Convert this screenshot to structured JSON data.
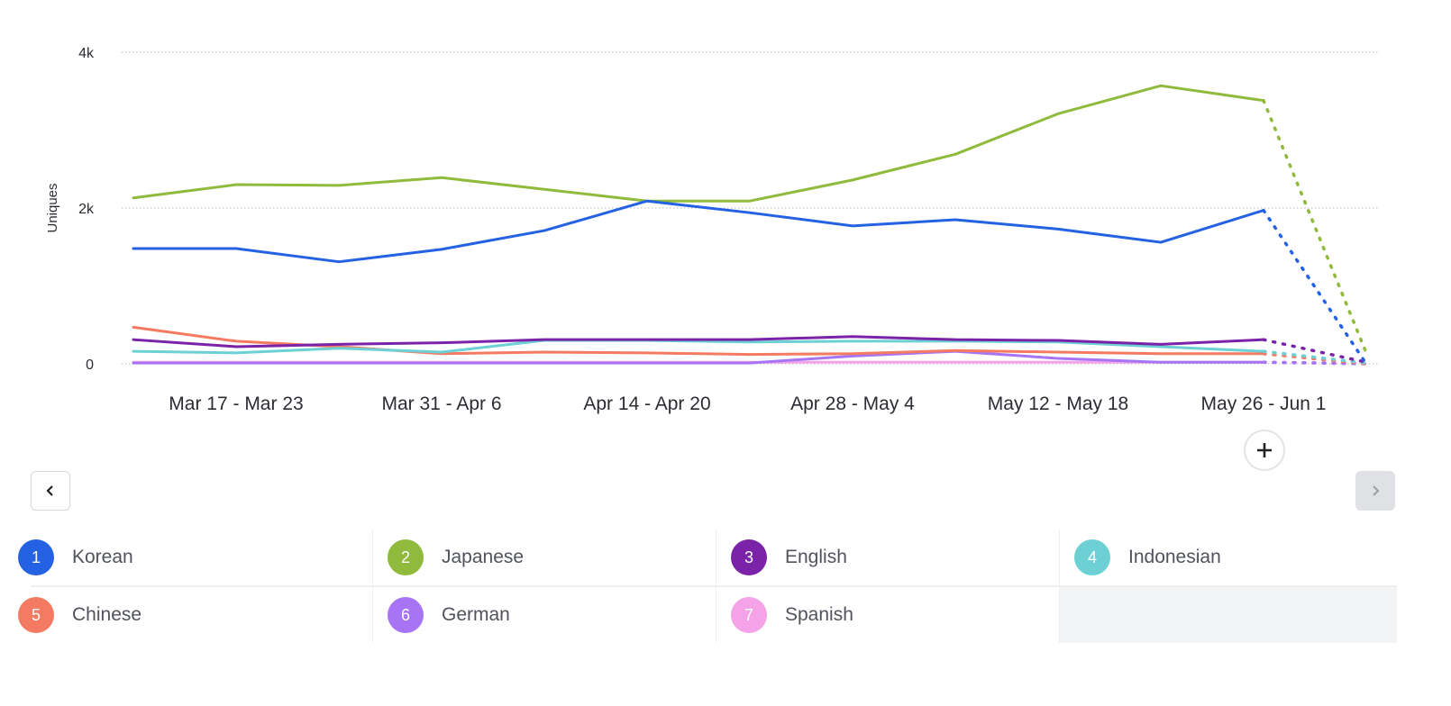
{
  "chart_data": {
    "type": "line",
    "ylabel": "Uniques",
    "xlabel": "",
    "ylim": [
      0,
      4000
    ],
    "y_ticks": [
      "0",
      "2k",
      "4k"
    ],
    "y_tick_values": [
      0,
      2000,
      4000
    ],
    "grid": "horizontal dotted",
    "x_tick_labels": [
      "Mar 17 - Mar 23",
      "Mar 31 - Apr 6",
      "Apr 14 - Apr 20",
      "Apr 28 - May 4",
      "May 12 - May 18",
      "May 26 - Jun 1"
    ],
    "last_point_incomplete": true,
    "series": [
      {
        "name": "Korean",
        "color": "#2462e3",
        "values": [
          1480,
          1480,
          1310,
          1470,
          1710,
          2090,
          1940,
          1770,
          1850,
          1730,
          1560,
          1970,
          0
        ]
      },
      {
        "name": "Japanese",
        "color": "#8fba3c",
        "values": [
          2130,
          2300,
          2290,
          2390,
          2240,
          2090,
          2090,
          2360,
          2690,
          3210,
          3570,
          3380,
          140
        ]
      },
      {
        "name": "English",
        "color": "#7a23a9",
        "values": [
          310,
          220,
          250,
          270,
          310,
          310,
          310,
          350,
          310,
          300,
          250,
          310,
          20
        ]
      },
      {
        "name": "Indonesian",
        "color": "#6dd0d4",
        "values": [
          160,
          140,
          200,
          150,
          300,
          300,
          280,
          290,
          290,
          280,
          220,
          160,
          10
        ]
      },
      {
        "name": "Chinese",
        "color": "#f47a61",
        "values": [
          470,
          290,
          220,
          130,
          150,
          140,
          120,
          130,
          170,
          150,
          130,
          130,
          0
        ]
      },
      {
        "name": "German",
        "color": "#a674f5",
        "values": [
          10,
          10,
          10,
          10,
          10,
          10,
          10,
          100,
          160,
          70,
          20,
          20,
          0
        ]
      },
      {
        "name": "Spanish",
        "color": "#f4a3e8",
        "values": [
          20,
          20,
          20,
          20,
          20,
          20,
          20,
          20,
          20,
          20,
          20,
          20,
          10
        ]
      }
    ]
  },
  "legend": [
    {
      "num": "1",
      "label": "Korean",
      "color": "#2462e3"
    },
    {
      "num": "2",
      "label": "Japanese",
      "color": "#8fba3c"
    },
    {
      "num": "3",
      "label": "English",
      "color": "#7a23a9"
    },
    {
      "num": "4",
      "label": "Indonesian",
      "color": "#6dd0d4"
    },
    {
      "num": "5",
      "label": "Chinese",
      "color": "#f47a61"
    },
    {
      "num": "6",
      "label": "German",
      "color": "#a674f5"
    },
    {
      "num": "7",
      "label": "Spanish",
      "color": "#f4a3e8"
    }
  ],
  "controls": {
    "prev_icon": "chevron-left-icon",
    "next_icon": "chevron-right-icon",
    "add_icon": "plus-icon",
    "next_disabled": true
  }
}
